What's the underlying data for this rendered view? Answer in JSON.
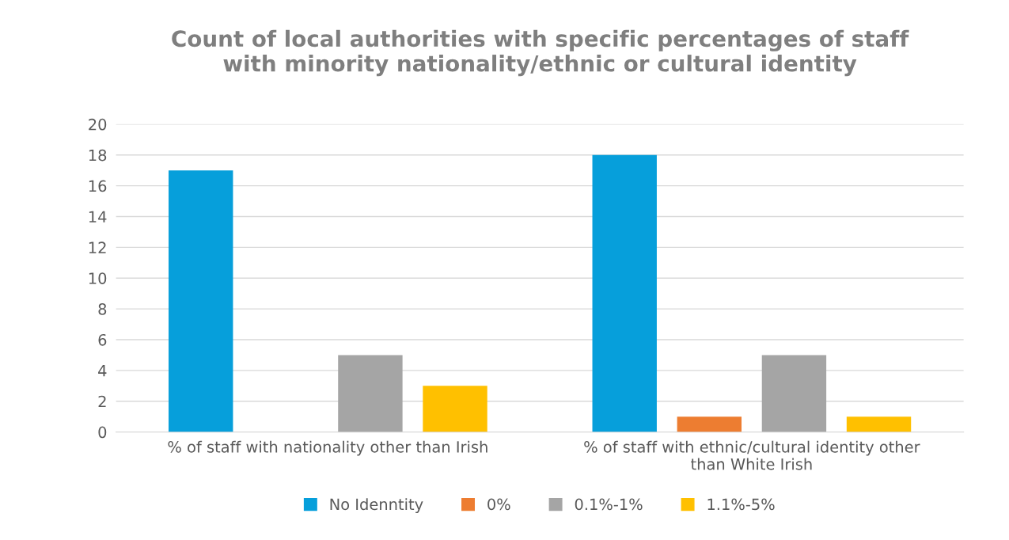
{
  "chart_data": {
    "type": "bar",
    "title": "Count of local authorities with specific percentages of staff\nwith minority nationality/ethnic or cultural identity",
    "categories": [
      "% of staff with nationality other than Irish",
      "% of staff with ethnic/cultural identity other\nthan White Irish"
    ],
    "series": [
      {
        "name": "No Idenntity",
        "color": "#069fdb",
        "values": [
          17,
          18
        ]
      },
      {
        "name": "0%",
        "color": "#ed7d31",
        "values": [
          0,
          1
        ]
      },
      {
        "name": "0.1%-1%",
        "color": "#a5a5a5",
        "values": [
          5,
          5
        ]
      },
      {
        "name": "1.1%-5%",
        "color": "#ffc000",
        "values": [
          3,
          1
        ]
      }
    ],
    "ylim": [
      0,
      20
    ],
    "yticks": [
      0,
      2,
      4,
      6,
      8,
      10,
      12,
      14,
      16,
      18,
      20
    ],
    "grid": "y",
    "legend": "bottom"
  }
}
